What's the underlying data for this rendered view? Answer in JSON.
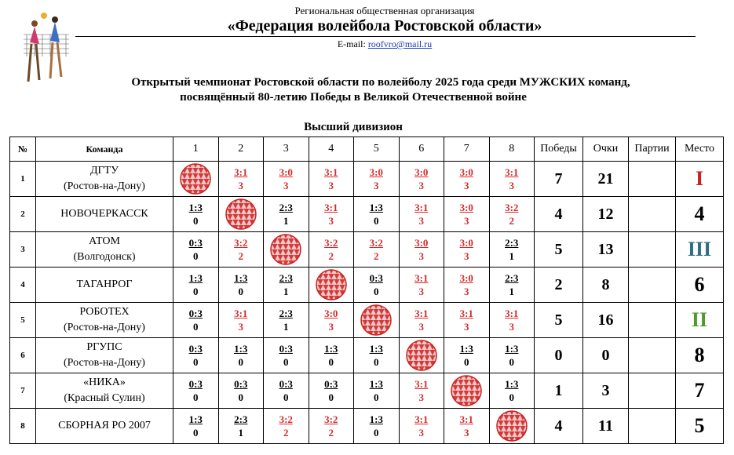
{
  "header": {
    "org": "Региональная общественная организация",
    "federation": "«Федерация волейбола Ростовской области»",
    "email_label": "E-mail:",
    "email": "roofvro@mail.ru"
  },
  "title": {
    "line1": "Открытый чемпионат Ростовской области по волейболу 2025 года среди МУЖСКИХ команд,",
    "line2": "посвящённый 80-летию Победы в Великой Отечественной войне",
    "division": "Высший дивизион"
  },
  "table": {
    "columns": [
      "№",
      "Команда",
      "1",
      "2",
      "3",
      "4",
      "5",
      "6",
      "7",
      "8",
      "Победы",
      "Очки",
      "Партии",
      "Место"
    ],
    "win_color": "#d62a2a",
    "rows": [
      {
        "num": "1",
        "name": "ДГТУ",
        "city": "(Ростов-на-Дону)",
        "games": [
          null,
          {
            "score": "3:1",
            "points": 3
          },
          {
            "score": "3:0",
            "points": 3
          },
          {
            "score": "3:1",
            "points": 3
          },
          {
            "score": "3:0",
            "points": 3
          },
          {
            "score": "3:0",
            "points": 3
          },
          {
            "score": "3:0",
            "points": 3
          },
          {
            "score": "3:1",
            "points": 3
          }
        ],
        "wins": 7,
        "points": 21,
        "place": "I",
        "place_color": "#c8201f"
      },
      {
        "num": "2",
        "name": "НОВОЧЕРКАССК",
        "games": [
          {
            "score": "1:3",
            "points": 0
          },
          null,
          {
            "score": "2:3",
            "points": 1
          },
          {
            "score": "3:1",
            "points": 3
          },
          {
            "score": "1:3",
            "points": 0
          },
          {
            "score": "3:1",
            "points": 3
          },
          {
            "score": "3:0",
            "points": 3
          },
          {
            "score": "3:2",
            "points": 2
          }
        ],
        "wins": 4,
        "points": 12,
        "place": "4",
        "place_color": "#000000"
      },
      {
        "num": "3",
        "name": "АТОМ",
        "city": "(Волгодонск)",
        "games": [
          {
            "score": "0:3",
            "points": 0
          },
          {
            "score": "3:2",
            "points": 2
          },
          null,
          {
            "score": "3:2",
            "points": 2
          },
          {
            "score": "3:2",
            "points": 2
          },
          {
            "score": "3:0",
            "points": 3
          },
          {
            "score": "3:0",
            "points": 3
          },
          {
            "score": "2:3",
            "points": 1
          }
        ],
        "wins": 5,
        "points": 13,
        "place": "III",
        "place_color": "#2c6f86"
      },
      {
        "num": "4",
        "name": "ТАГАНРОГ",
        "games": [
          {
            "score": "1:3",
            "points": 0
          },
          {
            "score": "1:3",
            "points": 0
          },
          {
            "score": "2:3",
            "points": 1
          },
          null,
          {
            "score": "0:3",
            "points": 0
          },
          {
            "score": "3:1",
            "points": 3
          },
          {
            "score": "3:0",
            "points": 3
          },
          {
            "score": "2:3",
            "points": 1
          }
        ],
        "wins": 2,
        "points": 8,
        "place": "6",
        "place_color": "#000000"
      },
      {
        "num": "5",
        "name": "РОБОТЕХ",
        "city": "(Ростов-на-Дону)",
        "games": [
          {
            "score": "0:3",
            "points": 0
          },
          {
            "score": "3:1",
            "points": 3
          },
          {
            "score": "2:3",
            "points": 1
          },
          {
            "score": "3:0",
            "points": 3
          },
          null,
          {
            "score": "3:1",
            "points": 3
          },
          {
            "score": "3:1",
            "points": 3
          },
          {
            "score": "3:1",
            "points": 3
          }
        ],
        "wins": 5,
        "points": 16,
        "place": "II",
        "place_color": "#4f9a2f"
      },
      {
        "num": "6",
        "name": "РГУПС",
        "city": "(Ростов-на-Дону)",
        "games": [
          {
            "score": "0:3",
            "points": 0
          },
          {
            "score": "1:3",
            "points": 0
          },
          {
            "score": "0:3",
            "points": 0
          },
          {
            "score": "1:3",
            "points": 0
          },
          {
            "score": "1:3",
            "points": 0
          },
          null,
          {
            "score": "1:3",
            "points": 0
          },
          {
            "score": "1:3",
            "points": 0
          }
        ],
        "wins": 0,
        "points": 0,
        "place": "8",
        "place_color": "#000000"
      },
      {
        "num": "7",
        "name": "«НИКА»",
        "city": "(Красный Сулин)",
        "games": [
          {
            "score": "0:3",
            "points": 0
          },
          {
            "score": "0:3",
            "points": 0
          },
          {
            "score": "0:3",
            "points": 0
          },
          {
            "score": "0:3",
            "points": 0
          },
          {
            "score": "1:3",
            "points": 0
          },
          {
            "score": "3:1",
            "points": 3
          },
          null,
          {
            "score": "1:3",
            "points": 0
          }
        ],
        "wins": 1,
        "points": 3,
        "place": "7",
        "place_color": "#000000"
      },
      {
        "num": "8",
        "name": "СБОРНАЯ РО 2007",
        "games": [
          {
            "score": "1:3",
            "points": 0
          },
          {
            "score": "2:3",
            "points": 1
          },
          {
            "score": "3:2",
            "points": 2
          },
          {
            "score": "3:2",
            "points": 2
          },
          {
            "score": "1:3",
            "points": 0
          },
          {
            "score": "3:1",
            "points": 3
          },
          {
            "score": "3:1",
            "points": 3
          },
          null
        ],
        "wins": 4,
        "points": 11,
        "place": "5",
        "place_color": "#000000"
      }
    ]
  }
}
